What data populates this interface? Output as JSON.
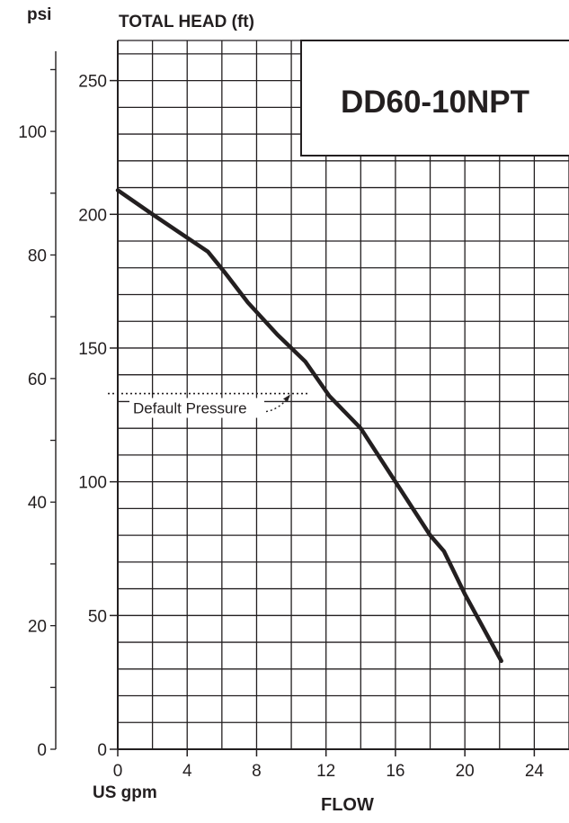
{
  "chart_data": {
    "type": "line",
    "title": "DD60-10NPT",
    "xlabel": "FLOW",
    "x_unit": "US gpm",
    "ylabel": "TOTAL HEAD (ft)",
    "y2_unit": "psi",
    "xlim": [
      0,
      26
    ],
    "ylim": [
      0,
      265
    ],
    "x_ticks": [
      "0",
      "4",
      "8",
      "12",
      "16",
      "20",
      "24"
    ],
    "y_ticks": [
      "0",
      "50",
      "100",
      "150",
      "200",
      "250"
    ],
    "y2_ticks": [
      "0",
      "20",
      "40",
      "60",
      "80",
      "100"
    ],
    "grid": true,
    "series": [
      {
        "x": [
          0,
          2,
          5.2,
          6.2,
          7.5,
          9.2,
          10.8,
          12.2,
          14,
          16,
          18,
          18.8,
          20,
          22.1
        ],
        "y": [
          209,
          200,
          186,
          178,
          167,
          155,
          145,
          132,
          120,
          100,
          80,
          74,
          58,
          33
        ]
      }
    ],
    "annotations": [
      {
        "text": "Default Pressure",
        "y": 133
      }
    ]
  }
}
